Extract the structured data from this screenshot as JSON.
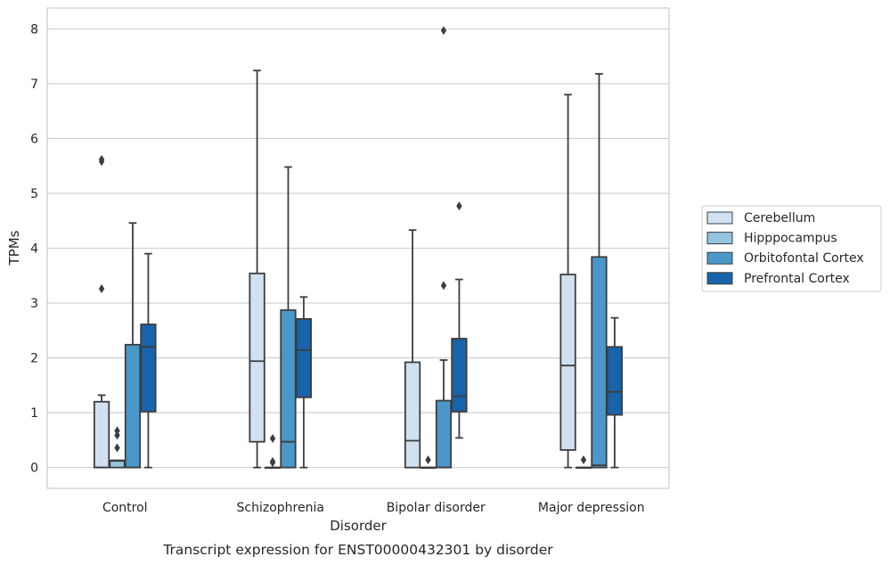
{
  "chart_data": {
    "type": "boxplot",
    "title": "",
    "caption": "Transcript expression for ENST00000432301 by disorder",
    "xlabel": "Disorder",
    "ylabel": "TPMs",
    "ylim": [
      -0.38,
      8.38
    ],
    "yticks": [
      0,
      1,
      2,
      3,
      4,
      5,
      6,
      7,
      8
    ],
    "grid": "horizontal",
    "legend_position": "right",
    "categories": [
      "Control",
      "Schizophrenia",
      "Bipolar disorder",
      "Major depression"
    ],
    "series": [
      {
        "name": "Cerebellum",
        "color": "#d0e1f2",
        "boxes": [
          {
            "whislo": 0,
            "q1": 0,
            "med": 0,
            "q3": 1.2,
            "whishi": 1.32,
            "fliers": [
              3.26,
              5.58,
              5.62
            ]
          },
          {
            "whislo": 0,
            "q1": 0.47,
            "med": 1.94,
            "q3": 3.54,
            "whishi": 7.24,
            "fliers": []
          },
          {
            "whislo": 0,
            "q1": 0,
            "med": 0.49,
            "q3": 1.92,
            "whishi": 4.33,
            "fliers": []
          },
          {
            "whislo": 0,
            "q1": 0.32,
            "med": 1.86,
            "q3": 3.52,
            "whishi": 6.8,
            "fliers": []
          }
        ]
      },
      {
        "name": "Hipppocampus",
        "color": "#94c4df",
        "boxes": [
          {
            "whislo": 0,
            "q1": 0,
            "med": 0.12,
            "q3": 0.13,
            "whishi": 0.13,
            "fliers": [
              0.36,
              0.59,
              0.67
            ]
          },
          {
            "whislo": 0,
            "q1": 0,
            "med": 0,
            "q3": 0,
            "whishi": 0,
            "fliers": [
              0.09,
              0.11,
              0.53
            ]
          },
          {
            "whislo": 0,
            "q1": 0,
            "med": 0,
            "q3": 0,
            "whishi": 0,
            "fliers": [
              0.14
            ]
          },
          {
            "whislo": 0,
            "q1": 0,
            "med": 0,
            "q3": 0,
            "whishi": 0,
            "fliers": [
              0.14
            ]
          }
        ]
      },
      {
        "name": "Orbitofontal Cortex",
        "color": "#4a98c9",
        "boxes": [
          {
            "whislo": 0,
            "q1": 0,
            "med": 0,
            "q3": 2.24,
            "whishi": 4.46,
            "fliers": []
          },
          {
            "whislo": 0,
            "q1": 0,
            "med": 0.47,
            "q3": 2.87,
            "whishi": 5.48,
            "fliers": []
          },
          {
            "whislo": 0,
            "q1": 0,
            "med": 0,
            "q3": 1.22,
            "whishi": 1.96,
            "fliers": [
              3.32,
              7.97
            ]
          },
          {
            "whislo": 0,
            "q1": 0,
            "med": 0.04,
            "q3": 3.84,
            "whishi": 7.18,
            "fliers": []
          }
        ]
      },
      {
        "name": "Prefrontal Cortex",
        "color": "#1764ab",
        "boxes": [
          {
            "whislo": 0,
            "q1": 1.02,
            "med": 2.2,
            "q3": 2.61,
            "whishi": 3.9,
            "fliers": []
          },
          {
            "whislo": 0,
            "q1": 1.28,
            "med": 2.14,
            "q3": 2.71,
            "whishi": 3.11,
            "fliers": []
          },
          {
            "whislo": 0.54,
            "q1": 1.02,
            "med": 1.3,
            "q3": 2.35,
            "whishi": 3.43,
            "fliers": [
              4.77
            ]
          },
          {
            "whislo": 0,
            "q1": 0.96,
            "med": 1.38,
            "q3": 2.2,
            "whishi": 2.73,
            "fliers": []
          }
        ]
      }
    ]
  }
}
